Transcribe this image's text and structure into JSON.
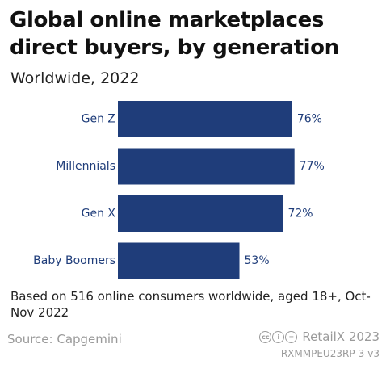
{
  "title": "Global online marketplaces direct buyers, by generation",
  "subtitle": "Worldwide, 2022",
  "note": "Based on 516 online consumers worldwide, aged 18+, Oct-Nov 2022",
  "source": "Source: Capgemini",
  "brand": "RetailX 2023",
  "report_code": "RXMMPEU23RP-3-v3",
  "colors": {
    "bar": "#1f3d7a",
    "label": "#1f3d7a"
  },
  "chart_data": {
    "type": "bar",
    "orientation": "horizontal",
    "categories": [
      "Gen Z",
      "Millennials",
      "Gen X",
      "Baby Boomers"
    ],
    "values": [
      76,
      77,
      72,
      53
    ],
    "value_labels": [
      "76%",
      "77%",
      "72%",
      "53%"
    ],
    "unit": "%",
    "xlim": [
      0,
      100
    ],
    "grid": false,
    "legend": "none"
  }
}
